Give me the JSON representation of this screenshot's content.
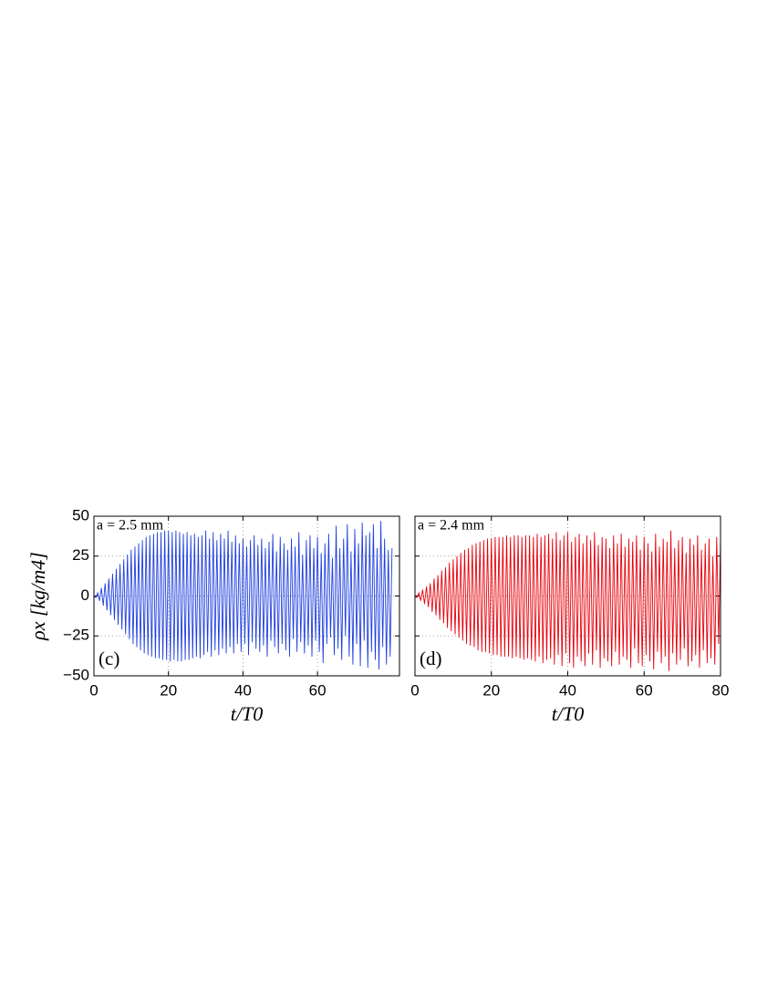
{
  "chart_data": [
    {
      "type": "line",
      "ylabel": "ρx [kg/m4]",
      "xlabel": "t/T0",
      "annotation": "a = 2.5 mm",
      "panel_label": "(c)",
      "color": "#1f3fdf",
      "xlim": [
        0,
        82
      ],
      "xticks": [
        0,
        20,
        40,
        60
      ],
      "ylim": [
        -50,
        50
      ],
      "yticks": [
        {
          "value": -50,
          "label": "−50"
        },
        {
          "value": -25,
          "label": "−25"
        },
        0,
        25,
        50
      ],
      "grid": true,
      "x": [
        0,
        0.5,
        1,
        1.5,
        2,
        2.5,
        3,
        3.5,
        4,
        4.5,
        5,
        5.5,
        6,
        6.5,
        7,
        7.5,
        8,
        8.5,
        9,
        9.5,
        10,
        10.5,
        11,
        11.5,
        12,
        12.5,
        13,
        13.5,
        14,
        14.5,
        15,
        15.5,
        16,
        16.5,
        17,
        17.5,
        18,
        18.5,
        19,
        19.5,
        20,
        20.5,
        21,
        21.5,
        22,
        22.5,
        23,
        23.5,
        24,
        24.5,
        25,
        25.5,
        26,
        26.5,
        27,
        27.5,
        28,
        28.5,
        29,
        29.5,
        30,
        30.5,
        31,
        31.5,
        32,
        32.5,
        33,
        33.5,
        34,
        34.5,
        35,
        35.5,
        36,
        36.5,
        37,
        37.5,
        38,
        38.5,
        39,
        39.5,
        40,
        40.5,
        41,
        41.5,
        42,
        42.5,
        43,
        43.5,
        44,
        44.5,
        45,
        45.5,
        46,
        46.5,
        47,
        47.5,
        48,
        48.5,
        49,
        49.5,
        50,
        50.5,
        51,
        51.5,
        52,
        52.5,
        53,
        53.5,
        54,
        54.5,
        55,
        55.5,
        56,
        56.5,
        57,
        57.5,
        58,
        58.5,
        59,
        59.5,
        60,
        60.5,
        61,
        61.5,
        62,
        62.5,
        63,
        63.5,
        64,
        64.5,
        65,
        65.5,
        66,
        66.5,
        67,
        67.5,
        68,
        68.5,
        69,
        69.5,
        70,
        70.5,
        71,
        71.5,
        72,
        72.5,
        73,
        73.5,
        74,
        74.5,
        75,
        75.5,
        76,
        76.5,
        77,
        77.5,
        78,
        78.5,
        79,
        79.5,
        80
      ],
      "values": [
        0,
        -1,
        2,
        -3,
        5,
        -6,
        8,
        -9,
        11,
        -12,
        14,
        -15,
        17,
        -18,
        20,
        -21,
        23,
        -24,
        26,
        -27,
        29,
        -30,
        31,
        -32,
        33,
        -34,
        35,
        -36,
        37,
        -37,
        38,
        -38,
        39,
        -39,
        40,
        -39,
        40,
        -40,
        41,
        -40,
        41,
        -41,
        40,
        -40,
        41,
        -41,
        40,
        -41,
        39,
        -40,
        40,
        -40,
        38,
        -39,
        39,
        -38,
        37,
        -39,
        38,
        -37,
        41,
        -35,
        36,
        -38,
        40,
        -34,
        35,
        -37,
        39,
        -33,
        36,
        -36,
        41,
        -32,
        34,
        -36,
        38,
        -30,
        33,
        -35,
        36,
        -30,
        31,
        -37,
        35,
        -29,
        38,
        -33,
        32,
        -35,
        36,
        -31,
        30,
        -38,
        34,
        -28,
        39,
        -32,
        28,
        -36,
        37,
        -30,
        33,
        -34,
        29,
        -38,
        36,
        -27,
        31,
        -35,
        40,
        -29,
        26,
        -36,
        35,
        -31,
        38,
        -38,
        30,
        -28,
        37,
        -35,
        27,
        -42,
        33,
        -30,
        39,
        -26,
        24,
        -37,
        44,
        -33,
        30,
        -40,
        36,
        -25,
        45,
        -38,
        28,
        -43,
        42,
        -30,
        33,
        -44,
        46,
        -28,
        38,
        -45,
        40,
        -35,
        45,
        -40,
        30,
        -46,
        47,
        -32,
        36,
        -43,
        29,
        -38,
        30
      ]
    },
    {
      "type": "line",
      "xlabel": "t/T0",
      "annotation": "a = 2.4 mm",
      "panel_label": "(d)",
      "color": "#e8000b",
      "xlim": [
        0,
        80
      ],
      "xticks": [
        0,
        20,
        40,
        60,
        80
      ],
      "ylim": [
        -50,
        50
      ],
      "yticks": [
        -50,
        -25,
        0,
        25,
        50
      ],
      "grid": true,
      "x": [
        0,
        0.5,
        1,
        1.5,
        2,
        2.5,
        3,
        3.5,
        4,
        4.5,
        5,
        5.5,
        6,
        6.5,
        7,
        7.5,
        8,
        8.5,
        9,
        9.5,
        10,
        10.5,
        11,
        11.5,
        12,
        12.5,
        13,
        13.5,
        14,
        14.5,
        15,
        15.5,
        16,
        16.5,
        17,
        17.5,
        18,
        18.5,
        19,
        19.5,
        20,
        20.5,
        21,
        21.5,
        22,
        22.5,
        23,
        23.5,
        24,
        24.5,
        25,
        25.5,
        26,
        26.5,
        27,
        27.5,
        28,
        28.5,
        29,
        29.5,
        30,
        30.5,
        31,
        31.5,
        32,
        32.5,
        33,
        33.5,
        34,
        34.5,
        35,
        35.5,
        36,
        36.5,
        37,
        37.5,
        38,
        38.5,
        39,
        39.5,
        40,
        40.5,
        41,
        41.5,
        42,
        42.5,
        43,
        43.5,
        44,
        44.5,
        45,
        45.5,
        46,
        46.5,
        47,
        47.5,
        48,
        48.5,
        49,
        49.5,
        50,
        50.5,
        51,
        51.5,
        52,
        52.5,
        53,
        53.5,
        54,
        54.5,
        55,
        55.5,
        56,
        56.5,
        57,
        57.5,
        58,
        58.5,
        59,
        59.5,
        60,
        60.5,
        61,
        61.5,
        62,
        62.5,
        63,
        63.5,
        64,
        64.5,
        65,
        65.5,
        66,
        66.5,
        67,
        67.5,
        68,
        68.5,
        69,
        69.5,
        70,
        70.5,
        71,
        71.5,
        72,
        72.5,
        73,
        73.5,
        74,
        74.5,
        75,
        75.5,
        76,
        76.5,
        77,
        77.5,
        78,
        78.5,
        79,
        79.5,
        80
      ],
      "values": [
        0,
        -1,
        2,
        -3,
        4,
        -5,
        6,
        -7,
        8,
        -10,
        11,
        -12,
        13,
        -15,
        16,
        -17,
        18,
        -20,
        21,
        -22,
        23,
        -24,
        25,
        -26,
        27,
        -28,
        29,
        -30,
        30,
        -31,
        32,
        -32,
        33,
        -34,
        34,
        -35,
        35,
        -35,
        36,
        -36,
        36,
        -37,
        37,
        -37,
        37,
        -38,
        37,
        -38,
        38,
        -38,
        37,
        -39,
        38,
        -38,
        38,
        -39,
        37,
        -40,
        38,
        -39,
        38,
        -40,
        37,
        -41,
        39,
        -38,
        37,
        -42,
        38,
        -40,
        39,
        -39,
        36,
        -43,
        40,
        -37,
        35,
        -44,
        38,
        -36,
        40,
        -42,
        34,
        -45,
        37,
        -38,
        39,
        -41,
        33,
        -44,
        38,
        -36,
        35,
        -43,
        40,
        -34,
        32,
        -45,
        37,
        -39,
        36,
        -41,
        30,
        -44,
        38,
        -35,
        33,
        -43,
        39,
        -38,
        31,
        -40,
        36,
        -45,
        34,
        -33,
        38,
        -42,
        29,
        -44,
        37,
        -37,
        33,
        -41,
        28,
        -46,
        39,
        -35,
        31,
        -42,
        36,
        -38,
        34,
        -47,
        41,
        -36,
        30,
        -43,
        35,
        -40,
        37,
        -33,
        27,
        -44,
        36,
        -41,
        32,
        -37,
        38,
        -45,
        29,
        -34,
        33,
        -42,
        36,
        -39,
        25,
        -43,
        37,
        -30,
        35
      ]
    }
  ]
}
